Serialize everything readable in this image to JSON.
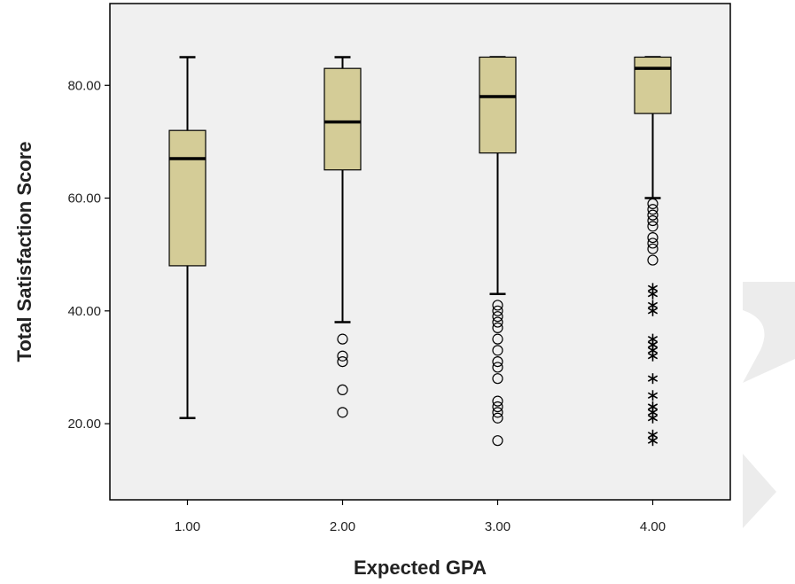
{
  "chart_data": {
    "type": "boxplot",
    "title": "",
    "xlabel": "Expected GPA",
    "ylabel": "Total Satisfaction Score",
    "ylim": [
      6.5,
      94.5
    ],
    "y_ticks": [
      "20.00",
      "40.00",
      "60.00",
      "80.00"
    ],
    "y_tick_values": [
      20,
      40,
      60,
      80
    ],
    "grid": false,
    "colors": {
      "box_fill": "#d4cc97",
      "plot_bg": "#f0f0f0",
      "stroke": "#000000",
      "decoration": "#ececec"
    },
    "categories": [
      "1.00",
      "2.00",
      "3.00",
      "4.00"
    ],
    "boxes": [
      {
        "category": "1.00",
        "whisker_low": 21,
        "q1": 48,
        "median": 67,
        "q3": 72,
        "whisker_high": 85,
        "outliers": [],
        "extremes": []
      },
      {
        "category": "2.00",
        "whisker_low": 38,
        "q1": 65,
        "median": 73.5,
        "q3": 83,
        "whisker_high": 85,
        "outliers": [
          35,
          32,
          31,
          26,
          22
        ],
        "extremes": []
      },
      {
        "category": "3.00",
        "whisker_low": 43,
        "q1": 68,
        "median": 78,
        "q3": 85,
        "whisker_high": 85,
        "outliers": [
          41,
          40,
          39,
          38,
          37,
          35,
          33,
          31,
          30,
          28,
          24,
          23,
          22,
          21,
          17
        ],
        "extremes": []
      },
      {
        "category": "4.00",
        "whisker_low": 60,
        "q1": 75,
        "median": 83,
        "q3": 85,
        "whisker_high": 85,
        "outliers": [
          59,
          58,
          57,
          56,
          55,
          53,
          52,
          51,
          49
        ],
        "extremes": [
          44,
          43,
          41,
          40,
          35,
          34,
          33,
          32,
          28,
          25,
          23,
          22,
          21,
          18,
          17
        ]
      }
    ]
  }
}
